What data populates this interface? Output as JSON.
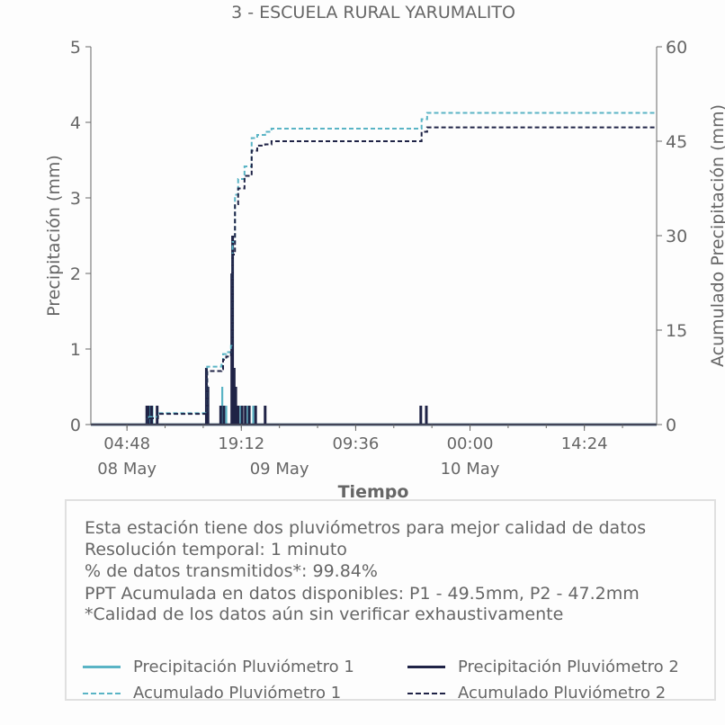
{
  "title": "3 - ESCUELA RURAL YARUMALITO",
  "info": {
    "line1": "Esta estación tiene dos pluviómetros para mejor calidad de datos",
    "line2": "Resolución temporal: 1 minuto",
    "line3": "% de datos transmitidos*: 99.84%",
    "line4": "PPT Acumulada en datos disponibles: P1 - 49.5mm, P2 - 47.2mm",
    "line5": "*Calidad de los datos aún sin verificar exhaustivamente"
  },
  "legend": {
    "p1": "Precipitación Pluviómetro 1",
    "p2": "Precipitación Pluviómetro 2",
    "a1": "Acumulado Pluviómetro 1",
    "a2": "Acumulado Pluviómetro 2"
  },
  "colors": {
    "p1": "#5ab4c5",
    "p2": "#1f2346",
    "axis": "#666666"
  },
  "chart_data": {
    "type": "line",
    "title": "3 - ESCUELA RURAL YARUMALITO",
    "xlabel": "Tiempo",
    "ylabel": "Precipitación (mm)",
    "y2label": "Acumulado Precipitación (mm)",
    "x_unit": "hours since 08 May 00:00",
    "xlim": [
      0.25,
      71.5
    ],
    "ylim": [
      0,
      5
    ],
    "y2lim": [
      0,
      60
    ],
    "yticks": [
      0,
      1,
      2,
      3,
      4,
      5
    ],
    "y2ticks": [
      0,
      15,
      30,
      45,
      60
    ],
    "xticks": [
      {
        "x": 4.8,
        "label": "04:48",
        "date": "08 May"
      },
      {
        "x": 19.2,
        "label": "19:12",
        "date": "09 May"
      },
      {
        "x": 33.6,
        "label": "09:36",
        "date": ""
      },
      {
        "x": 48.0,
        "label": "00:00",
        "date": "10 May"
      },
      {
        "x": 62.4,
        "label": "14:24",
        "date": ""
      }
    ],
    "grid": false,
    "legend_position": "bottom",
    "series": [
      {
        "name": "Precipitación Pluviómetro 1",
        "kind": "bars",
        "points": [
          [
            7.3,
            0.25
          ],
          [
            7.6,
            0.25
          ],
          [
            8.0,
            0.25
          ],
          [
            8.6,
            0.25
          ],
          [
            14.9,
            0.25
          ],
          [
            16.8,
            0.5
          ],
          [
            17.3,
            0.25
          ],
          [
            18.1,
            2.5
          ],
          [
            18.3,
            0.75
          ],
          [
            18.6,
            0.25
          ],
          [
            19.1,
            0.25
          ],
          [
            20.0,
            0.25
          ],
          [
            20.7,
            0.25
          ],
          [
            22.2,
            0.25
          ],
          [
            41.8,
            0.25
          ],
          [
            42.5,
            0.25
          ]
        ]
      },
      {
        "name": "Precipitación Pluviómetro 2",
        "kind": "bars",
        "points": [
          [
            7.3,
            0.25
          ],
          [
            7.5,
            0.25
          ],
          [
            7.9,
            0.25
          ],
          [
            8.6,
            0.25
          ],
          [
            14.8,
            0.75
          ],
          [
            15.0,
            0.5
          ],
          [
            16.6,
            0.25
          ],
          [
            17.0,
            0.25
          ],
          [
            18.0,
            2.0
          ],
          [
            18.1,
            2.5
          ],
          [
            18.3,
            0.75
          ],
          [
            18.5,
            0.5
          ],
          [
            18.8,
            0.25
          ],
          [
            19.3,
            0.25
          ],
          [
            19.7,
            0.25
          ],
          [
            20.2,
            0.25
          ],
          [
            21.0,
            0.25
          ],
          [
            22.2,
            0.25
          ],
          [
            41.8,
            0.25
          ],
          [
            42.5,
            0.25
          ]
        ]
      },
      {
        "name": "Acumulado Pluviómetro 1",
        "kind": "cumulative",
        "points": [
          [
            0.25,
            0
          ],
          [
            7.2,
            0
          ],
          [
            7.3,
            1.2
          ],
          [
            8.7,
            1.8
          ],
          [
            14.8,
            2.0
          ],
          [
            14.9,
            9.2
          ],
          [
            16.7,
            9.5
          ],
          [
            16.9,
            11.2
          ],
          [
            17.3,
            11.5
          ],
          [
            17.9,
            12.5
          ],
          [
            18.1,
            29.0
          ],
          [
            18.4,
            36.5
          ],
          [
            18.8,
            39.0
          ],
          [
            19.6,
            41.0
          ],
          [
            20.5,
            45.5
          ],
          [
            21.2,
            46.0
          ],
          [
            22.2,
            46.5
          ],
          [
            23.0,
            47.0
          ],
          [
            41.7,
            47.0
          ],
          [
            41.9,
            48.5
          ],
          [
            42.6,
            49.5
          ],
          [
            71.5,
            49.5
          ]
        ]
      },
      {
        "name": "Acumulado Pluviómetro 2",
        "kind": "cumulative",
        "points": [
          [
            0.25,
            0
          ],
          [
            7.2,
            0
          ],
          [
            7.3,
            1.0
          ],
          [
            8.7,
            1.7
          ],
          [
            14.8,
            1.8
          ],
          [
            14.9,
            8.5
          ],
          [
            16.7,
            8.8
          ],
          [
            16.9,
            10.3
          ],
          [
            17.3,
            10.8
          ],
          [
            17.9,
            11.5
          ],
          [
            18.1,
            27.0
          ],
          [
            18.4,
            35.0
          ],
          [
            18.8,
            37.5
          ],
          [
            19.6,
            39.5
          ],
          [
            20.5,
            43.5
          ],
          [
            21.2,
            44.3
          ],
          [
            22.2,
            44.5
          ],
          [
            23.0,
            45.0
          ],
          [
            41.7,
            45.0
          ],
          [
            41.9,
            46.5
          ],
          [
            42.6,
            47.2
          ],
          [
            71.5,
            47.2
          ]
        ]
      }
    ]
  }
}
